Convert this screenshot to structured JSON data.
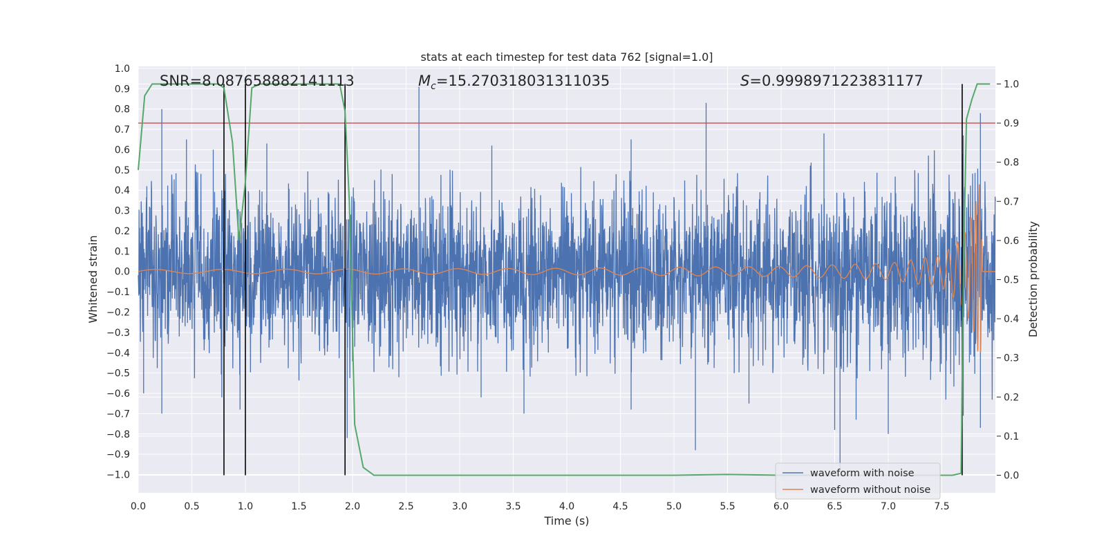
{
  "chart_data": {
    "type": "line",
    "title": "stats at each timestep for test data 762 [signal=1.0]",
    "xlabel": "Time (s)",
    "ylabel": "Whitened strain",
    "y2label": "Detection probability",
    "xlim": [
      0.0,
      8.0
    ],
    "ylim": [
      -1.09,
      1.01
    ],
    "y2lim": [
      -0.045,
      1.045
    ],
    "xticks": [
      0.0,
      0.5,
      1.0,
      1.5,
      2.0,
      2.5,
      3.0,
      3.5,
      4.0,
      4.5,
      5.0,
      5.5,
      6.0,
      6.5,
      7.0,
      7.5
    ],
    "xtick_labels": [
      "0.0",
      "0.5",
      "1.0",
      "1.5",
      "2.0",
      "2.5",
      "3.0",
      "3.5",
      "4.0",
      "4.5",
      "5.0",
      "5.5",
      "6.0",
      "6.5",
      "7.0",
      "7.5"
    ],
    "yticks": [
      1.0,
      0.9,
      0.8,
      0.7,
      0.6,
      0.5,
      0.4,
      0.3,
      0.2,
      0.1,
      0.0,
      -0.1,
      -0.2,
      -0.3,
      -0.4,
      -0.5,
      -0.6,
      -0.7,
      -0.8,
      -0.9,
      -1.0
    ],
    "ytick_labels": [
      "1.0",
      "0.9",
      "0.8",
      "0.7",
      "0.6",
      "0.5",
      "0.4",
      "0.3",
      "0.2",
      "0.1",
      "0.0",
      "−0.1",
      "−0.2",
      "−0.3",
      "−0.4",
      "−0.5",
      "−0.6",
      "−0.7",
      "−0.8",
      "−0.9",
      "−1.0"
    ],
    "y2ticks": [
      1.0,
      0.9,
      0.8,
      0.7,
      0.6,
      0.5,
      0.4,
      0.3,
      0.2,
      0.1,
      0.0
    ],
    "y2tick_labels": [
      "1.0",
      "0.9",
      "0.8",
      "0.7",
      "0.6",
      "0.5",
      "0.4",
      "0.3",
      "0.2",
      "0.1",
      "0.0"
    ],
    "annotations": {
      "snr": "SNR=8.087658882141113",
      "mc_symbol": "M",
      "mc_sub": "c",
      "mc_value": "=15.270318031311035",
      "s_symbol": "S",
      "s_value": "=0.9998971223831177"
    },
    "threshold": 0.9,
    "vertical_lines": [
      0.8,
      1.0,
      1.93,
      7.69
    ],
    "noise_waveform": {
      "name": "waveform with noise",
      "band_envelope": [
        [
          0.0,
          0.3
        ],
        [
          0.5,
          0.33
        ],
        [
          1.0,
          0.33
        ],
        [
          1.5,
          0.35
        ],
        [
          2.0,
          0.33
        ],
        [
          3.0,
          0.32
        ],
        [
          4.0,
          0.33
        ],
        [
          5.0,
          0.3
        ],
        [
          6.0,
          0.33
        ],
        [
          7.0,
          0.35
        ],
        [
          7.6,
          0.4
        ],
        [
          8.0,
          0.4
        ]
      ],
      "notable_peaks": [
        [
          0.08,
          0.42
        ],
        [
          0.22,
          0.8
        ],
        [
          0.45,
          0.65
        ],
        [
          0.7,
          0.6
        ],
        [
          1.2,
          0.63
        ],
        [
          1.93,
          0.68
        ],
        [
          2.62,
          0.91
        ],
        [
          3.3,
          0.62
        ],
        [
          4.6,
          0.65
        ],
        [
          5.3,
          0.83
        ],
        [
          6.4,
          0.68
        ],
        [
          7.7,
          0.67
        ],
        [
          7.86,
          0.78
        ]
      ],
      "notable_troughs": [
        [
          0.05,
          -0.6
        ],
        [
          0.22,
          -0.7
        ],
        [
          0.78,
          -0.62
        ],
        [
          0.95,
          -0.68
        ],
        [
          1.95,
          -0.82
        ],
        [
          3.2,
          -0.62
        ],
        [
          3.6,
          -0.7
        ],
        [
          4.6,
          -0.68
        ],
        [
          5.2,
          -0.88
        ],
        [
          5.7,
          -0.65
        ],
        [
          6.5,
          -0.78
        ],
        [
          6.55,
          -0.97
        ],
        [
          6.7,
          -0.73
        ],
        [
          7.0,
          -0.8
        ],
        [
          7.7,
          -0.71
        ],
        [
          7.86,
          -0.77
        ]
      ]
    },
    "clean_waveform": {
      "name": "waveform without noise",
      "amplitude_envelope": [
        [
          0.0,
          0.01
        ],
        [
          2.0,
          0.012
        ],
        [
          4.0,
          0.016
        ],
        [
          6.0,
          0.025
        ],
        [
          7.0,
          0.04
        ],
        [
          7.5,
          0.08
        ],
        [
          7.7,
          0.17
        ],
        [
          7.8,
          0.3
        ],
        [
          7.86,
          0.46
        ],
        [
          7.88,
          0.0
        ],
        [
          8.0,
          0.0
        ]
      ]
    },
    "probability": {
      "name": "detection probability",
      "points": [
        [
          0.0,
          0.78
        ],
        [
          0.06,
          0.97
        ],
        [
          0.13,
          1.0
        ],
        [
          0.5,
          1.0
        ],
        [
          0.75,
          1.0
        ],
        [
          0.8,
          0.99
        ],
        [
          0.88,
          0.85
        ],
        [
          0.94,
          0.6
        ],
        [
          1.0,
          0.75
        ],
        [
          1.06,
          0.99
        ],
        [
          1.13,
          1.0
        ],
        [
          1.5,
          1.0
        ],
        [
          1.88,
          1.0
        ],
        [
          1.93,
          0.93
        ],
        [
          1.97,
          0.7
        ],
        [
          2.02,
          0.13
        ],
        [
          2.1,
          0.02
        ],
        [
          2.2,
          0.0
        ],
        [
          5.0,
          0.0
        ],
        [
          5.5,
          0.002
        ],
        [
          6.0,
          0.0
        ],
        [
          7.6,
          0.0
        ],
        [
          7.68,
          0.005
        ],
        [
          7.7,
          0.5
        ],
        [
          7.73,
          0.91
        ],
        [
          7.78,
          0.96
        ],
        [
          7.83,
          1.0
        ],
        [
          7.95,
          1.0
        ]
      ]
    },
    "legend": {
      "position": "lower-right",
      "entries": [
        {
          "label": "waveform with noise",
          "color": "#4c72b0"
        },
        {
          "label": "waveform without noise",
          "color": "#dd8452"
        }
      ]
    },
    "colors": {
      "background": "#eaeaf2",
      "grid": "#ffffff",
      "noise": "#4c72b0",
      "clean": "#dd8452",
      "probability": "#55a868",
      "threshold": "#c44e52",
      "vline": "#000000"
    }
  }
}
